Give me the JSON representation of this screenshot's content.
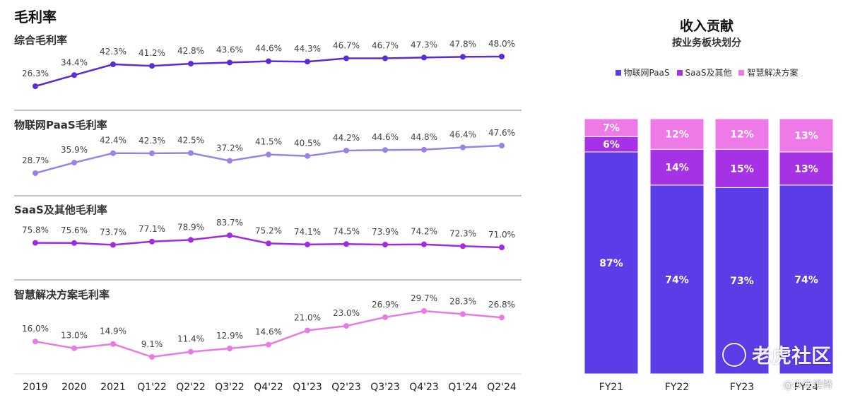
{
  "header": {
    "title": "毛利率",
    "subtitle": "综合毛利率"
  },
  "panels": [
    {
      "title": "综合毛利率"
    },
    {
      "title": "物联网PaaS毛利率"
    },
    {
      "title": "SaaS及其他毛利率"
    },
    {
      "title": "智慧解决方案毛利率"
    }
  ],
  "revenue": {
    "title": "收入贡献",
    "subtitle": "按业务板块划分"
  },
  "colors": {
    "series1": "#5b2bd6",
    "series2": "#9a82e6",
    "series3": "#a12be0",
    "series4": "#e87ae4",
    "paas": "#5b3ce6",
    "saas": "#a632e6",
    "smart": "#ee7ae8"
  },
  "chart_data": [
    {
      "type": "line",
      "title": "毛利率",
      "categories": [
        "2019",
        "2020",
        "2021",
        "Q1'22",
        "Q2'22",
        "Q3'22",
        "Q4'22",
        "Q1'23",
        "Q2'23",
        "Q3'23",
        "Q4'23",
        "Q1'24",
        "Q2'24"
      ],
      "series": [
        {
          "name": "综合毛利率",
          "values": [
            26.3,
            34.4,
            42.3,
            41.2,
            42.8,
            43.6,
            44.6,
            44.3,
            46.7,
            46.7,
            47.3,
            47.8,
            48.0
          ],
          "labels": [
            "26.3%",
            "34.4%",
            "42.3%",
            "41.2%",
            "42.8%",
            "43.6%",
            "44.6%",
            "44.3%",
            "46.7%",
            "46.7%",
            "47.3%",
            "47.8%",
            "48.0%"
          ]
        },
        {
          "name": "物联网PaaS毛利率",
          "values": [
            28.7,
            35.9,
            42.4,
            42.3,
            42.5,
            37.2,
            41.5,
            40.5,
            44.2,
            44.6,
            44.8,
            46.4,
            47.6
          ],
          "labels": [
            "28.7%",
            "35.9%",
            "42.4%",
            "42.3%",
            "42.5%",
            "37.2%",
            "41.5%",
            "40.5%",
            "44.2%",
            "44.6%",
            "44.8%",
            "46.4%",
            "47.6%"
          ]
        },
        {
          "name": "SaaS及其他毛利率",
          "values": [
            75.8,
            75.6,
            73.7,
            77.1,
            78.9,
            83.7,
            75.2,
            74.1,
            74.5,
            73.9,
            74.2,
            72.3,
            71.0
          ],
          "labels": [
            "75.8%",
            "75.6%",
            "73.7%",
            "77.1%",
            "78.9%",
            "83.7%",
            "75.2%",
            "74.1%",
            "74.5%",
            "73.9%",
            "74.2%",
            "72.3%",
            "71.0%"
          ]
        },
        {
          "name": "智慧解决方案毛利率",
          "values": [
            16.0,
            13.0,
            14.9,
            9.1,
            11.4,
            12.9,
            14.6,
            21.0,
            23.0,
            26.9,
            29.7,
            28.3,
            26.8
          ],
          "labels": [
            "16.0%",
            "13.0%",
            "14.9%",
            "9.1%",
            "11.4%",
            "12.9%",
            "14.6%",
            "21.0%",
            "23.0%",
            "26.9%",
            "29.7%",
            "28.3%",
            "26.8%"
          ]
        }
      ]
    },
    {
      "type": "bar",
      "stacked": true,
      "title": "收入贡献",
      "subtitle": "按业务板块划分",
      "categories": [
        "FY21",
        "FY22",
        "FY23",
        "FY24"
      ],
      "series": [
        {
          "name": "物联网PaaS",
          "values": [
            87,
            74,
            73,
            74
          ],
          "labels": [
            "87%",
            "74%",
            "73%",
            "74%"
          ]
        },
        {
          "name": "SaaS及其他",
          "values": [
            6,
            14,
            15,
            13
          ],
          "labels": [
            "6%",
            "14%",
            "15%",
            "13%"
          ]
        },
        {
          "name": "智慧解决方案",
          "values": [
            7,
            12,
            12,
            13
          ],
          "labels": [
            "7%",
            "12%",
            "12%",
            "13%"
          ]
        }
      ],
      "legend": [
        "物联网PaaS",
        "SaaS及其他",
        "智慧解决方案"
      ]
    }
  ],
  "watermark": {
    "text": "老虎社区",
    "credit": "@少年维特"
  }
}
